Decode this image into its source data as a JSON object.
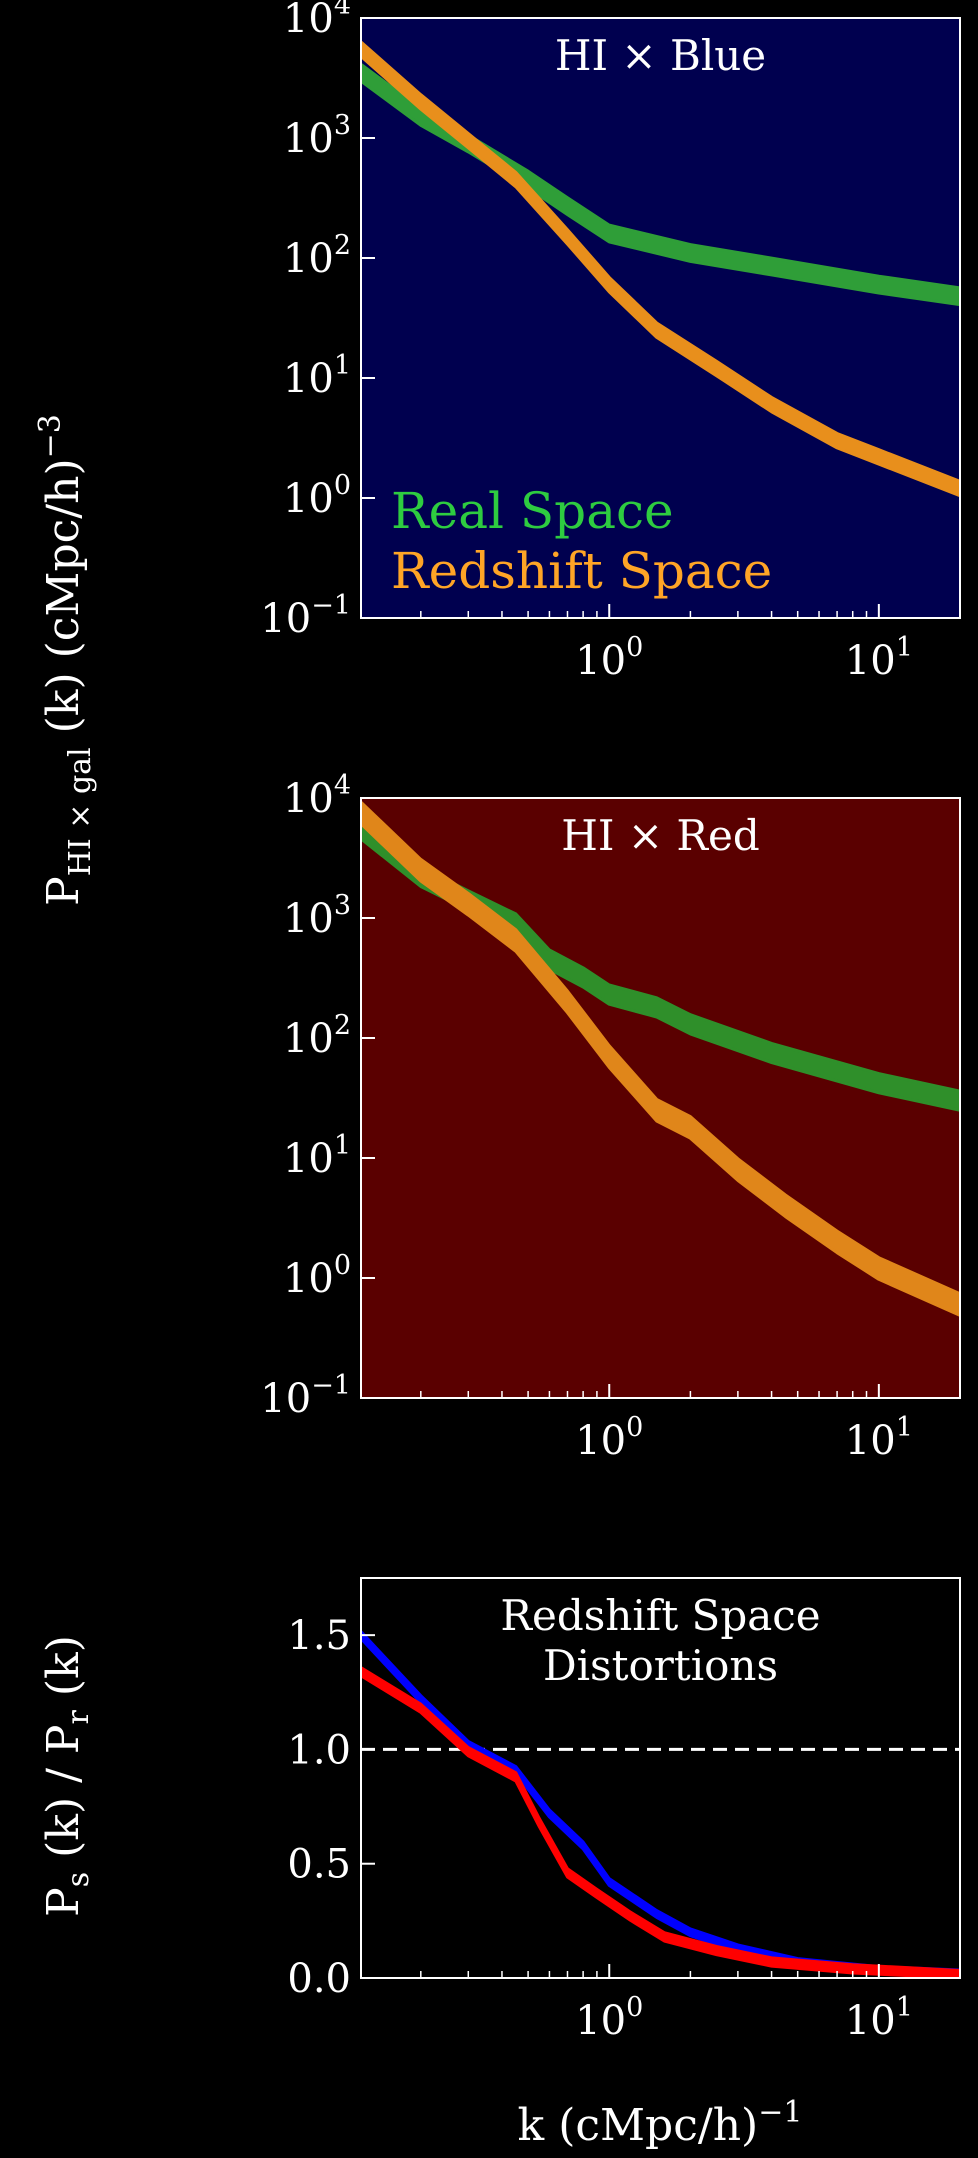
{
  "labels": {
    "ylabel_power": "P",
    "ylabel_power_sub": "HI × gal",
    "ylabel_power_rest": " (k) (cMpc/h)",
    "ylabel_power_exp": "−3",
    "ylabel_ratio_P": "P",
    "ylabel_ratio_s": "s",
    "ylabel_ratio_mid": " (k) / P",
    "ylabel_ratio_r": "r",
    "ylabel_ratio_end": " (k)",
    "xlabel_main": "k (cMpc/h)",
    "xlabel_exp": "−1"
  },
  "chart_data": [
    {
      "type": "area",
      "title": "HI × Blue",
      "background": "#00004f",
      "xscale": "log",
      "yscale": "log",
      "xlim": [
        0.12,
        20
      ],
      "ylim": [
        0.1,
        10000
      ],
      "xticks": [
        {
          "base": "10",
          "exp": "0",
          "value": 1
        },
        {
          "base": "10",
          "exp": "1",
          "value": 10
        }
      ],
      "yticks": [
        {
          "base": "10",
          "exp": "4",
          "value": 10000
        },
        {
          "base": "10",
          "exp": "3",
          "value": 1000
        },
        {
          "base": "10",
          "exp": "2",
          "value": 100
        },
        {
          "base": "10",
          "exp": "1",
          "value": 10
        },
        {
          "base": "10",
          "exp": "0",
          "value": 1
        },
        {
          "base": "10",
          "exp": "−1",
          "value": 0.1
        }
      ],
      "legend": {
        "placement": "lower-left",
        "entries": [
          {
            "label": "Real Space",
            "color": "#2ecc40"
          },
          {
            "label": "Redshift Space",
            "color": "#ffa526"
          }
        ]
      },
      "series": [
        {
          "name": "Real Space",
          "color": "#2f9e38",
          "x": [
            0.12,
            0.2,
            0.3,
            0.5,
            0.7,
            1.0,
            2.0,
            4.0,
            10.0,
            20.0
          ],
          "y": [
            3500,
            1500,
            900,
            450,
            270,
            160,
            110,
            85,
            60,
            48
          ],
          "band": 0.07
        },
        {
          "name": "Redshift Space",
          "color": "#e88f1c",
          "x": [
            0.12,
            0.2,
            0.3,
            0.45,
            0.7,
            1.0,
            1.5,
            2.5,
            4.0,
            7.0,
            10.0,
            20.0
          ],
          "y": [
            5500,
            2000,
            950,
            450,
            150,
            60,
            25,
            12,
            6,
            3,
            2.2,
            1.2
          ],
          "band": 0.06
        }
      ]
    },
    {
      "type": "area",
      "title": "HI × Red",
      "background": "#5a0000",
      "xscale": "log",
      "yscale": "log",
      "xlim": [
        0.12,
        20
      ],
      "ylim": [
        0.1,
        10000
      ],
      "xticks": [
        {
          "base": "10",
          "exp": "0",
          "value": 1
        },
        {
          "base": "10",
          "exp": "1",
          "value": 10
        }
      ],
      "yticks": [
        {
          "base": "10",
          "exp": "4",
          "value": 10000
        },
        {
          "base": "10",
          "exp": "3",
          "value": 1000
        },
        {
          "base": "10",
          "exp": "2",
          "value": 100
        },
        {
          "base": "10",
          "exp": "1",
          "value": 10
        },
        {
          "base": "10",
          "exp": "0",
          "value": 1
        },
        {
          "base": "10",
          "exp": "−1",
          "value": 0.1
        }
      ],
      "series": [
        {
          "name": "Real Space",
          "color": "#2f8f2a",
          "x": [
            0.12,
            0.2,
            0.3,
            0.45,
            0.6,
            0.8,
            1.0,
            1.5,
            2.0,
            4.0,
            10.0,
            20.0
          ],
          "y": [
            5500,
            2200,
            1400,
            900,
            450,
            320,
            230,
            180,
            130,
            75,
            42,
            30
          ],
          "band": 0.08
        },
        {
          "name": "Redshift Space",
          "color": "#e0861a",
          "x": [
            0.12,
            0.2,
            0.3,
            0.45,
            0.7,
            1.0,
            1.5,
            2.0,
            3.0,
            4.5,
            7.0,
            10.0,
            20.0
          ],
          "y": [
            7500,
            2500,
            1300,
            650,
            200,
            70,
            25,
            18,
            8,
            4,
            2,
            1.2,
            0.6
          ],
          "band": 0.09
        }
      ]
    },
    {
      "type": "line",
      "title_lines": [
        "Redshift Space",
        "Distortions"
      ],
      "background": "#000000",
      "xscale": "log",
      "yscale": "linear",
      "xlim": [
        0.12,
        20
      ],
      "ylim": [
        0.0,
        1.75
      ],
      "xticks": [
        {
          "base": "10",
          "exp": "0",
          "value": 1
        },
        {
          "base": "10",
          "exp": "1",
          "value": 10
        }
      ],
      "yticks": [
        {
          "label": "1.5",
          "value": 1.5
        },
        {
          "label": "1.0",
          "value": 1.0
        },
        {
          "label": "0.5",
          "value": 0.5
        },
        {
          "label": "0.0",
          "value": 0.0
        }
      ],
      "reference_line": {
        "y": 1.0,
        "style": "dashed",
        "color": "#ffffff"
      },
      "series": [
        {
          "name": "HI × Blue",
          "color": "#0000ff",
          "x": [
            0.12,
            0.2,
            0.3,
            0.45,
            0.6,
            0.8,
            1.0,
            1.5,
            2.0,
            3.0,
            5.0,
            10.0,
            20.0
          ],
          "y": [
            1.5,
            1.22,
            1.02,
            0.91,
            0.72,
            0.58,
            0.42,
            0.28,
            0.2,
            0.13,
            0.07,
            0.035,
            0.02
          ],
          "band": 0.015
        },
        {
          "name": "HI × Red",
          "color": "#ff0000",
          "x": [
            0.12,
            0.2,
            0.3,
            0.45,
            0.55,
            0.7,
            0.9,
            1.2,
            1.6,
            2.5,
            4.0,
            8.0,
            20.0
          ],
          "y": [
            1.34,
            1.18,
            0.99,
            0.88,
            0.68,
            0.46,
            0.37,
            0.27,
            0.18,
            0.12,
            0.07,
            0.04,
            0.015
          ],
          "band": 0.018
        }
      ]
    }
  ]
}
